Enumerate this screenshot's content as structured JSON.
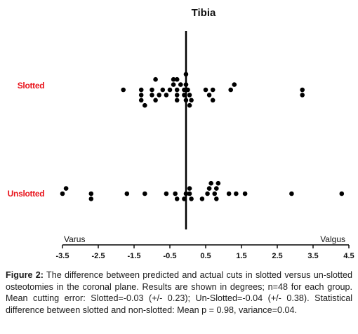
{
  "chart_data": {
    "type": "scatter",
    "title": "Tibia",
    "xlabel": "",
    "ylabel": "",
    "x_ticks": [
      -3.5,
      -2.5,
      -1.5,
      -0.5,
      0.5,
      1.5,
      2.5,
      3.5,
      4.5
    ],
    "x_tick_labels": [
      "-3.5",
      "-2.5",
      "-1.5",
      "-0.5",
      "0.5",
      "1.5",
      "2.5",
      "3.5",
      "4.5"
    ],
    "xlim": [
      -3.5,
      4.5
    ],
    "left_end_label": "Varus",
    "right_end_label": "Valgus",
    "categories": [
      "Slotted",
      "Unslotted"
    ],
    "category_color": "#e8131b",
    "point_color": "#000000",
    "grid": false,
    "series": [
      {
        "name": "Slotted",
        "points": [
          [
            -1.8,
            0
          ],
          [
            -1.3,
            0
          ],
          [
            -1.0,
            0
          ],
          [
            -0.7,
            0
          ],
          [
            -0.5,
            0
          ],
          [
            -0.3,
            0
          ],
          [
            -0.1,
            0
          ],
          [
            0.0,
            0
          ],
          [
            0.5,
            0
          ],
          [
            0.7,
            0
          ],
          [
            1.2,
            0
          ],
          [
            3.2,
            0
          ],
          [
            -0.4,
            1
          ],
          [
            -0.2,
            1
          ],
          [
            -0.05,
            1
          ],
          [
            1.3,
            1
          ],
          [
            -0.9,
            2
          ],
          [
            -0.4,
            2
          ],
          [
            -0.3,
            2
          ],
          [
            -0.05,
            3
          ],
          [
            -1.3,
            -1
          ],
          [
            -1.0,
            -1
          ],
          [
            -0.8,
            -1
          ],
          [
            -0.6,
            -1
          ],
          [
            -0.3,
            -1
          ],
          [
            -0.1,
            -1
          ],
          [
            0.05,
            -1
          ],
          [
            0.6,
            -1
          ],
          [
            3.2,
            -1
          ],
          [
            -1.3,
            -2
          ],
          [
            -0.9,
            -2
          ],
          [
            -0.3,
            -2
          ],
          [
            -0.05,
            -2
          ],
          [
            0.1,
            -2
          ],
          [
            0.7,
            -2
          ],
          [
            -1.2,
            -3
          ],
          [
            0.05,
            -3
          ]
        ]
      },
      {
        "name": "Unslotted",
        "points": [
          [
            -3.4,
            1
          ],
          [
            -3.5,
            0
          ],
          [
            -2.7,
            0
          ],
          [
            -1.7,
            0
          ],
          [
            -1.2,
            0
          ],
          [
            -0.6,
            0
          ],
          [
            -0.35,
            0
          ],
          [
            -0.05,
            0
          ],
          [
            0.05,
            0
          ],
          [
            0.55,
            0
          ],
          [
            0.75,
            0
          ],
          [
            1.15,
            0
          ],
          [
            1.35,
            0
          ],
          [
            1.6,
            0
          ],
          [
            2.9,
            0
          ],
          [
            4.3,
            0
          ],
          [
            0.05,
            1
          ],
          [
            0.6,
            1
          ],
          [
            0.8,
            1
          ],
          [
            0.65,
            2
          ],
          [
            0.85,
            2
          ],
          [
            -2.7,
            -1
          ],
          [
            -0.3,
            -1
          ],
          [
            -0.1,
            -1
          ],
          [
            0.1,
            -1
          ],
          [
            0.4,
            -1
          ],
          [
            0.8,
            -1
          ]
        ]
      }
    ]
  },
  "caption": {
    "figure_label": "Figure 2:",
    "text": " The difference between predicted and actual cuts in slotted versus un-slotted osteotomies in the coronal plane. Results are shown in degrees; n=48 for each group. Mean cutting error: Slotted=-0.03 (+/- 0.23); Un-Slotted=-0.04 (+/- 0.38). Statistical difference between slotted and non-slotted: Mean p = 0.98, variance=0.04."
  }
}
